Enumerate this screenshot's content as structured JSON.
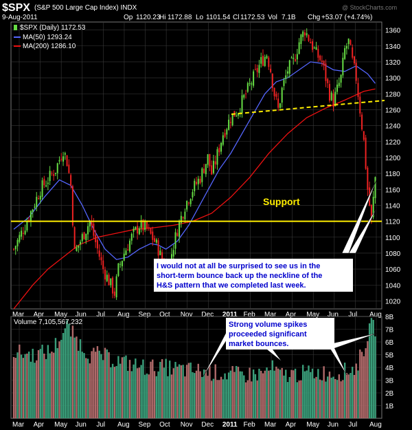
{
  "header": {
    "symbol": "$SPX",
    "name": "(S&P 500 Large Cap Index) INDX",
    "watermark": "@ StockCharts.com",
    "date": "9-Aug-2011",
    "op_label": "Op",
    "op": "1120.23",
    "hi_label": "Hi",
    "hi": "1172.88",
    "lo_label": "Lo",
    "lo": "1101.54",
    "cl_label": "Cl",
    "cl": "1172.53",
    "vol_label": "Vol",
    "vol": "7.1B",
    "chg_label": "Chg",
    "chg": "+53.07 (+4.74%)"
  },
  "legend": {
    "price": "$SPX (Daily) 1172.53",
    "ma50": "MA(50) 1293.24",
    "ma200": "MA(200) 1286.10",
    "volume": "Volume 7,105,567,232"
  },
  "annotations": {
    "support": "Support",
    "callout1": [
      "I would not at all be surprised to see us in the",
      "short-term bounce back up the neckline of the",
      "H&S pattern that we completed last week."
    ],
    "callout2": [
      "Strong volume spikes",
      "proceeded significant",
      "market bounces."
    ]
  },
  "colors": {
    "background": "#000000",
    "grid": "#3a3a3a",
    "up": "#66dd44",
    "down": "#ee2222",
    "ma50": "#5566ff",
    "ma200": "#ee1111",
    "support": "#ffee00",
    "neckline": "#ffee00",
    "vol_up": "#3a9e7a",
    "vol_down": "#b06a6a",
    "callout_text": "#0000cc"
  },
  "chart_data": [
    {
      "type": "candlestick",
      "title": "$SPX (S&P 500 Large Cap Index) INDX",
      "x_axis": [
        "Mar",
        "Apr",
        "May",
        "Jun",
        "Jul",
        "Aug",
        "Sep",
        "Oct",
        "Nov",
        "Dec",
        "2011",
        "Feb",
        "Mar",
        "Apr",
        "May",
        "Jun",
        "Jul",
        "Aug"
      ],
      "y_ticks": [
        1020,
        1040,
        1060,
        1080,
        1100,
        1120,
        1140,
        1160,
        1180,
        1200,
        1220,
        1240,
        1260,
        1280,
        1300,
        1320,
        1340,
        1360
      ],
      "ylim": [
        1010,
        1370
      ],
      "grid": true,
      "price_path": [
        [
          0,
          1085
        ],
        [
          6,
          1115
        ],
        [
          14,
          1160
        ],
        [
          22,
          1185
        ],
        [
          26,
          1210
        ],
        [
          28,
          1195
        ],
        [
          30,
          1165
        ],
        [
          32,
          1080
        ],
        [
          36,
          1100
        ],
        [
          40,
          1120
        ],
        [
          44,
          1085
        ],
        [
          47,
          1060
        ],
        [
          50,
          1045
        ],
        [
          53,
          1030
        ],
        [
          55,
          1060
        ],
        [
          58,
          1080
        ],
        [
          62,
          1100
        ],
        [
          66,
          1115
        ],
        [
          70,
          1110
        ],
        [
          74,
          1095
        ],
        [
          76,
          1085
        ],
        [
          78,
          1070
        ],
        [
          80,
          1050
        ],
        [
          82,
          1070
        ],
        [
          86,
          1110
        ],
        [
          90,
          1140
        ],
        [
          94,
          1160
        ],
        [
          98,
          1175
        ],
        [
          102,
          1200
        ],
        [
          104,
          1180
        ],
        [
          106,
          1195
        ],
        [
          110,
          1230
        ],
        [
          114,
          1250
        ],
        [
          118,
          1260
        ],
        [
          122,
          1280
        ],
        [
          126,
          1300
        ],
        [
          130,
          1320
        ],
        [
          133,
          1330
        ],
        [
          135,
          1310
        ],
        [
          137,
          1280
        ],
        [
          139,
          1260
        ],
        [
          141,
          1285
        ],
        [
          144,
          1310
        ],
        [
          147,
          1320
        ],
        [
          150,
          1345
        ],
        [
          153,
          1360
        ],
        [
          156,
          1345
        ],
        [
          159,
          1330
        ],
        [
          162,
          1320
        ],
        [
          164,
          1300
        ],
        [
          166,
          1280
        ],
        [
          168,
          1270
        ],
        [
          170,
          1285
        ],
        [
          172,
          1300
        ],
        [
          174,
          1335
        ],
        [
          176,
          1345
        ],
        [
          178,
          1320
        ],
        [
          180,
          1300
        ],
        [
          182,
          1260
        ],
        [
          184,
          1220
        ],
        [
          186,
          1160
        ],
        [
          188,
          1120
        ],
        [
          190,
          1175
        ]
      ],
      "ma50": [
        [
          0,
          1110
        ],
        [
          8,
          1125
        ],
        [
          16,
          1150
        ],
        [
          24,
          1172
        ],
        [
          30,
          1165
        ],
        [
          36,
          1140
        ],
        [
          42,
          1110
        ],
        [
          48,
          1085
        ],
        [
          54,
          1072
        ],
        [
          60,
          1075
        ],
        [
          66,
          1085
        ],
        [
          72,
          1092
        ],
        [
          76,
          1090
        ],
        [
          80,
          1085
        ],
        [
          86,
          1095
        ],
        [
          92,
          1115
        ],
        [
          100,
          1150
        ],
        [
          108,
          1185
        ],
        [
          114,
          1205
        ],
        [
          120,
          1230
        ],
        [
          126,
          1255
        ],
        [
          132,
          1280
        ],
        [
          138,
          1295
        ],
        [
          144,
          1300
        ],
        [
          150,
          1310
        ],
        [
          156,
          1320
        ],
        [
          162,
          1318
        ],
        [
          168,
          1310
        ],
        [
          174,
          1308
        ],
        [
          180,
          1315
        ],
        [
          186,
          1305
        ],
        [
          190,
          1293
        ]
      ],
      "ma200": [
        [
          0,
          1010
        ],
        [
          10,
          1040
        ],
        [
          18,
          1060
        ],
        [
          26,
          1075
        ],
        [
          34,
          1090
        ],
        [
          44,
          1100
        ],
        [
          54,
          1105
        ],
        [
          64,
          1110
        ],
        [
          74,
          1112
        ],
        [
          84,
          1115
        ],
        [
          94,
          1120
        ],
        [
          104,
          1130
        ],
        [
          114,
          1150
        ],
        [
          124,
          1175
        ],
        [
          134,
          1205
        ],
        [
          144,
          1230
        ],
        [
          154,
          1250
        ],
        [
          164,
          1262
        ],
        [
          174,
          1272
        ],
        [
          184,
          1283
        ],
        [
          190,
          1286
        ]
      ],
      "support_level": 1120,
      "neckline": [
        [
          1240,
          1260
        ]
      ]
    },
    {
      "type": "bar",
      "title": "Volume 7,105,567,232",
      "y_ticks": [
        "1B",
        "2B",
        "3B",
        "4B",
        "5B",
        "6B",
        "7B",
        "8B"
      ],
      "ylim": [
        0,
        8
      ],
      "levels": [
        [
          0,
          5.2
        ],
        [
          10,
          5.0
        ],
        [
          20,
          5.3
        ],
        [
          25,
          6.5
        ],
        [
          28,
          7.2
        ],
        [
          30,
          6.8
        ],
        [
          34,
          6.0
        ],
        [
          40,
          5.0
        ],
        [
          46,
          5.0
        ],
        [
          50,
          4.7
        ],
        [
          56,
          4.5
        ],
        [
          62,
          4.2
        ],
        [
          70,
          4.0
        ],
        [
          80,
          4.0
        ],
        [
          90,
          3.8
        ],
        [
          100,
          3.7
        ],
        [
          110,
          3.5
        ],
        [
          120,
          3.4
        ],
        [
          130,
          3.5
        ],
        [
          136,
          3.9
        ],
        [
          140,
          3.4
        ],
        [
          150,
          3.5
        ],
        [
          160,
          3.6
        ],
        [
          170,
          3.5
        ],
        [
          176,
          3.8
        ],
        [
          180,
          4.0
        ],
        [
          184,
          5.5
        ],
        [
          186,
          6.5
        ],
        [
          188,
          7.2
        ],
        [
          190,
          7.1
        ]
      ],
      "spike_labels": []
    }
  ]
}
